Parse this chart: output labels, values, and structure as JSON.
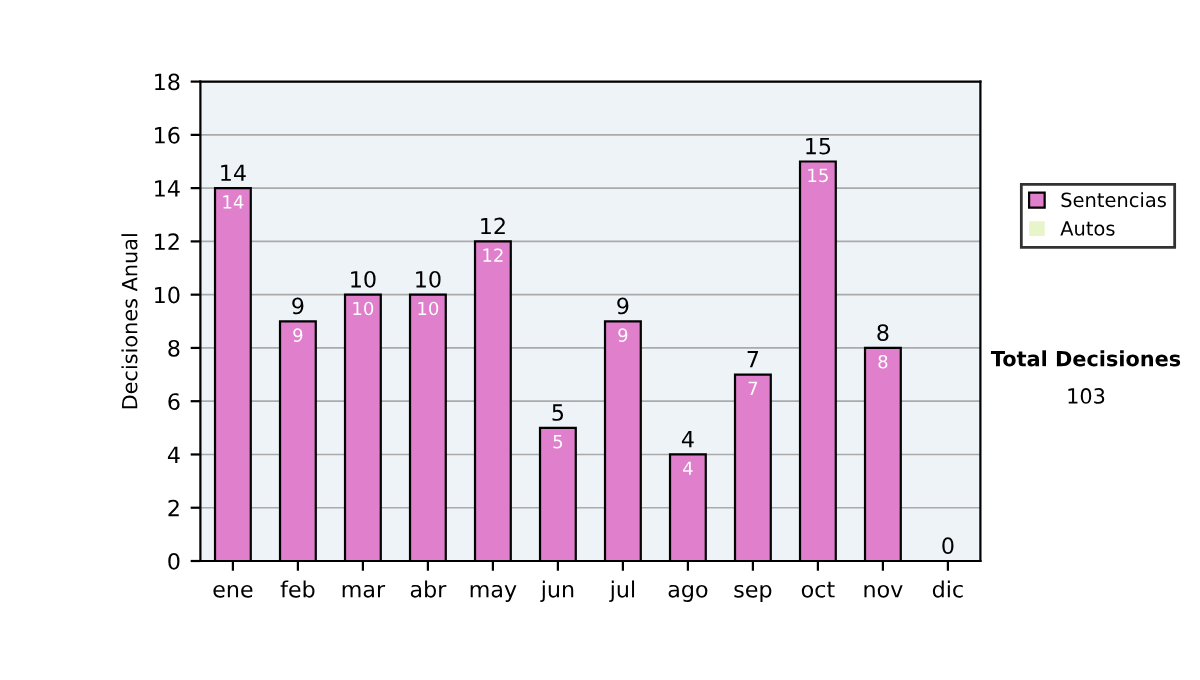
{
  "chart_data": {
    "type": "bar",
    "stacked": true,
    "ylabel": "Decisiones Anual",
    "categories": [
      "ene",
      "feb",
      "mar",
      "abr",
      "may",
      "jun",
      "jul",
      "ago",
      "sep",
      "oct",
      "nov",
      "dic"
    ],
    "series": [
      {
        "name": "Sentencias",
        "color": "#e080cc",
        "values": [
          14,
          9,
          10,
          10,
          12,
          5,
          9,
          4,
          7,
          15,
          8,
          0
        ],
        "value_labels": [
          "14",
          "9",
          "10",
          "10",
          "12",
          "5",
          "9",
          "4",
          "7",
          "15",
          "8",
          null
        ]
      },
      {
        "name": "Autos",
        "color": "#e8f5c8",
        "values": [
          0,
          0,
          0,
          0,
          0,
          0,
          0,
          0,
          0,
          0,
          0,
          0
        ]
      }
    ],
    "totals": [
      "14",
      "9",
      "10",
      "10",
      "12",
      "5",
      "9",
      "4",
      "7",
      "15",
      "8",
      "0"
    ],
    "ylim": [
      0,
      18
    ],
    "yticks": [
      0,
      2,
      4,
      6,
      8,
      10,
      12,
      14,
      16,
      18
    ],
    "grid": "y",
    "legend": "right",
    "annotations": [
      "Total Decisiones",
      "103"
    ]
  }
}
